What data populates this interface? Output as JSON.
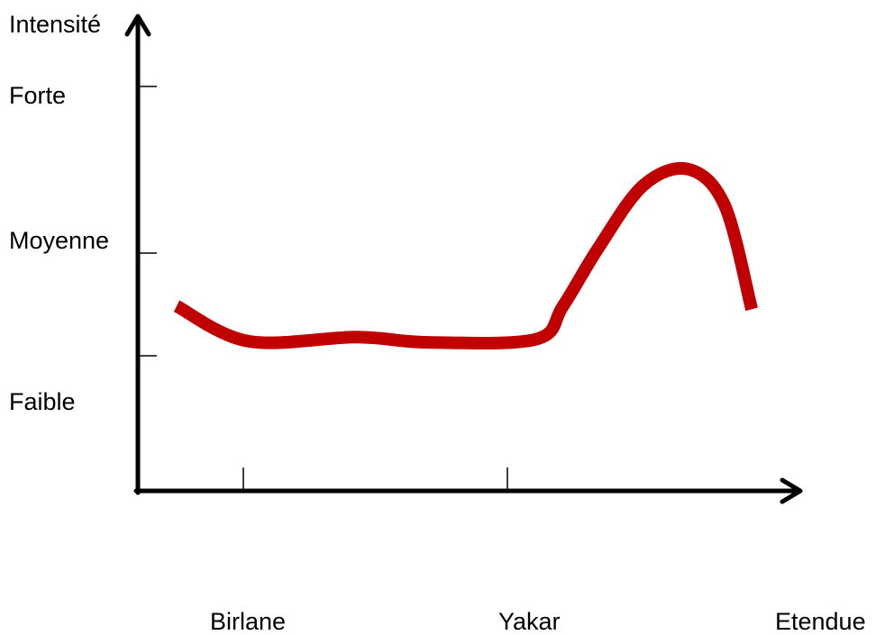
{
  "chart_data": {
    "type": "line",
    "title": "",
    "ylabel": "Intensité",
    "xlabel": "Etendue",
    "y_levels": [
      "Faible",
      "Moyenne",
      "Forte"
    ],
    "x_ticks": [
      "Birlane",
      "Yakar"
    ],
    "grid": false,
    "legend": "none",
    "series": [
      {
        "color": "#c00000",
        "x": [
          0.0,
          0.4,
          1.0,
          1.4,
          2.0,
          2.15,
          2.35,
          2.6,
          2.85,
          3.05,
          3.2
        ],
        "y": [
          1.48,
          1.14,
          1.18,
          1.13,
          1.16,
          1.48,
          2.05,
          2.65,
          2.8,
          2.45,
          1.45
        ]
      }
    ]
  }
}
